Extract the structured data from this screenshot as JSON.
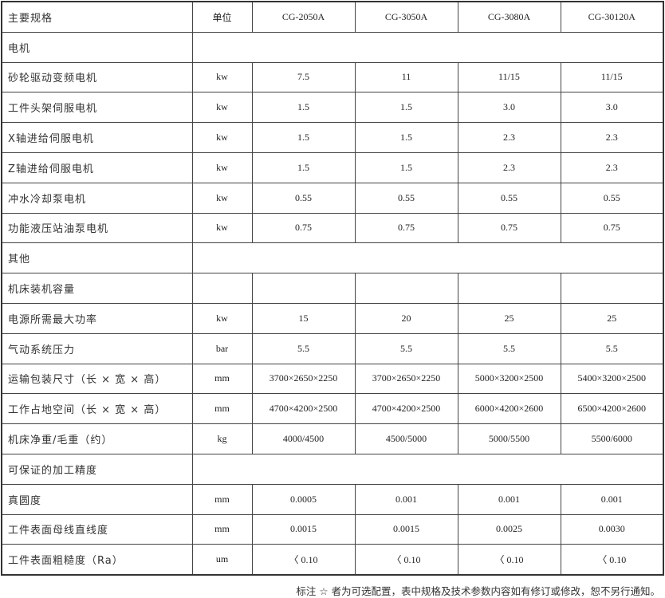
{
  "header": {
    "label": "主要规格",
    "unit": "单位",
    "models": [
      "CG-2050A",
      "CG-3050A",
      "CG-3080A",
      "CG-30120A"
    ]
  },
  "rows": [
    {
      "label": "电机",
      "section": true
    },
    {
      "label": "砂轮驱动变频电机",
      "unit": "kw",
      "values": [
        "7.5",
        "11",
        "11/15",
        "11/15"
      ]
    },
    {
      "label": "工件头架伺服电机",
      "unit": "kw",
      "values": [
        "1.5",
        "1.5",
        "3.0",
        "3.0"
      ]
    },
    {
      "label": "X轴进给伺服电机",
      "unit": "kw",
      "values": [
        "1.5",
        "1.5",
        "2.3",
        "2.3"
      ]
    },
    {
      "label": "Z轴进给伺服电机",
      "unit": "kw",
      "values": [
        "1.5",
        "1.5",
        "2.3",
        "2.3"
      ]
    },
    {
      "label": "冲水冷却泵电机",
      "unit": "kw",
      "values": [
        "0.55",
        "0.55",
        "0.55",
        "0.55"
      ]
    },
    {
      "label": "功能液压站油泵电机",
      "unit": "kw",
      "values": [
        "0.75",
        "0.75",
        "0.75",
        "0.75"
      ]
    },
    {
      "label": "其他",
      "section": true
    },
    {
      "label": "机床装机容量",
      "unit": "",
      "values": [
        "",
        "",
        "",
        ""
      ]
    },
    {
      "label": "电源所需最大功率",
      "unit": "kw",
      "values": [
        "15",
        "20",
        "25",
        "25"
      ]
    },
    {
      "label": "气动系统压力",
      "unit": "bar",
      "values": [
        "5.5",
        "5.5",
        "5.5",
        "5.5"
      ]
    },
    {
      "label": "运输包装尺寸（长 × 宽 × 高）",
      "unit": "mm",
      "values": [
        "3700×2650×2250",
        "3700×2650×2250",
        "5000×3200×2500",
        "5400×3200×2500"
      ]
    },
    {
      "label": "工作占地空间（长 × 宽 × 高）",
      "unit": "mm",
      "values": [
        "4700×4200×2500",
        "4700×4200×2500",
        "6000×4200×2600",
        "6500×4200×2600"
      ]
    },
    {
      "label": "机床净重/毛重（约）",
      "unit": "kg",
      "values": [
        "4000/4500",
        "4500/5000",
        "5000/5500",
        "5500/6000"
      ]
    },
    {
      "label": "可保证的加工精度",
      "section": true
    },
    {
      "label": "真圆度",
      "unit": "mm",
      "values": [
        "0.0005",
        "0.001",
        "0.001",
        "0.001"
      ]
    },
    {
      "label": "工件表面母线直线度",
      "unit": "mm",
      "values": [
        "0.0015",
        "0.0015",
        "0.0025",
        "0.0030"
      ]
    },
    {
      "label": "工件表面粗糙度（Ra）",
      "unit": "um",
      "values": [
        "〈 0.10",
        "〈 0.10",
        "〈 0.10",
        "〈 0.10"
      ]
    }
  ],
  "note": "标注 ☆ 者为可选配置，表中规格及技术参数内容如有修订或修改，恕不另行通知。"
}
